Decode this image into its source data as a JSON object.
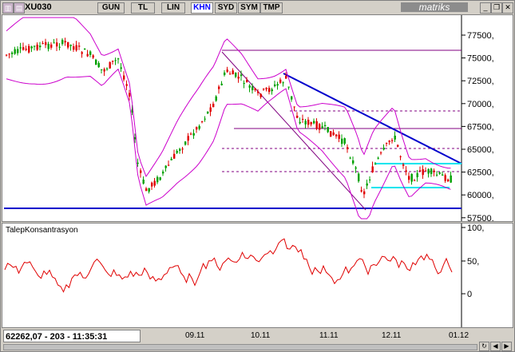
{
  "toolbar": {
    "symbol": "XU030",
    "tabs": [
      "GUN",
      "TL",
      "LIN",
      "KHN",
      "SYD",
      "SYM",
      "TMP"
    ],
    "active_tab": "KHN",
    "brand": "matriks",
    "icons": [
      "chart-type-icon",
      "period-icon"
    ],
    "window_buttons": [
      "minimize-icon",
      "restore-icon",
      "close-icon"
    ]
  },
  "main_chart": {
    "y_tick_labels": [
      "77500,",
      "75000,",
      "72500,",
      "70000,",
      "67500,",
      "65000,",
      "62500,",
      "60000,",
      "57500,"
    ],
    "colors": {
      "candle_up": "#00a000",
      "candle_down": "#e00000",
      "bollinger": "#cc00cc",
      "trend_blue": "#0000cc",
      "support_cyan": "#00e5ee",
      "dashed": "#800080"
    }
  },
  "indicator": {
    "title": "TalepKonsantrasyon",
    "y_tick_labels": [
      "100,",
      "50,",
      "0"
    ],
    "line_color": "#e00000"
  },
  "status": {
    "price_info": "62262,07 - 203 - 11:35:31",
    "dates": [
      "09.11",
      "10.11",
      "11.11",
      "12.11",
      "01.12"
    ]
  }
}
